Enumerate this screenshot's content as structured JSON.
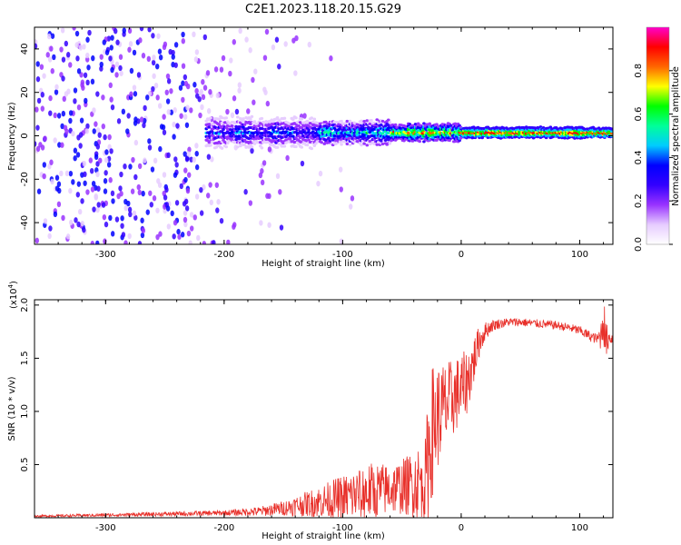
{
  "title": "C2E1.2023.118.20.15.G29",
  "colors": {
    "snr_line": "#e8302a",
    "axis": "#000000"
  },
  "chart_data": [
    {
      "type": "heatmap",
      "title": "C2E1.2023.118.20.15.G29",
      "xlabel": "Height of straight line (km)",
      "ylabel": "Frequency (Hz)",
      "xlim": [
        -360,
        128
      ],
      "ylim": [
        -50,
        50
      ],
      "x_ticks": [
        {
          "value": -300,
          "label": "-300"
        },
        {
          "value": -200,
          "label": "-200"
        },
        {
          "value": -100,
          "label": "-100"
        },
        {
          "value": 0,
          "label": "0"
        },
        {
          "value": 100,
          "label": "100"
        }
      ],
      "y_ticks": [
        {
          "value": -40,
          "label": "-40"
        },
        {
          "value": -20,
          "label": "-20"
        },
        {
          "value": 0,
          "label": "0"
        },
        {
          "value": 20,
          "label": "20"
        },
        {
          "value": 40,
          "label": "40"
        }
      ],
      "colorbar": {
        "label": "Normalized spectral amplitude",
        "range": [
          0,
          1
        ],
        "ticks": [
          {
            "value": 0.0,
            "label": "0.0"
          },
          {
            "value": 0.2,
            "label": "0.2"
          },
          {
            "value": 0.4,
            "label": "0.4"
          },
          {
            "value": 0.6,
            "label": "0.6"
          },
          {
            "value": 0.8,
            "label": "0.8"
          }
        ],
        "stops": [
          "#ffffff",
          "#e6ccff",
          "#9933ff",
          "#3300ff",
          "#0000ff",
          "#00ccff",
          "#00ff99",
          "#00ff00",
          "#ffff00",
          "#ff6600",
          "#ff0000",
          "#ff00cc"
        ]
      },
      "signal_frequency_hz": 1.5,
      "signal_start_height_km": -215
    },
    {
      "type": "line",
      "xlabel": "Height of straight line (km)",
      "ylabel": "SNR (10 * v/v)",
      "multiplier_label": "(x10",
      "multiplier_exponent": "4",
      "multiplier_close": ")",
      "xlim": [
        -360,
        128
      ],
      "ylim": [
        0,
        20500
      ],
      "x_ticks": [
        {
          "value": -300,
          "label": "-300"
        },
        {
          "value": -200,
          "label": "-200"
        },
        {
          "value": -100,
          "label": "-100"
        },
        {
          "value": 0,
          "label": "0"
        },
        {
          "value": 100,
          "label": "100"
        }
      ],
      "y_ticks": [
        {
          "value": 5000,
          "label": "0.5"
        },
        {
          "value": 10000,
          "label": "1.0"
        },
        {
          "value": 15000,
          "label": "1.5"
        },
        {
          "value": 20000,
          "label": "2.0"
        }
      ],
      "series": [
        {
          "x": [
            -360,
            -300,
            -250,
            -200,
            -170,
            -150,
            -130,
            -110,
            -90,
            -80,
            -70,
            -60,
            -50,
            -40,
            -35,
            -30,
            -28,
            -25,
            -20,
            -15,
            -10,
            -5,
            0,
            5,
            10,
            15,
            20,
            25,
            30,
            40,
            50,
            60,
            70,
            80,
            90,
            100,
            110,
            115,
            118,
            120,
            122,
            125,
            128
          ],
          "y": [
            150,
            250,
            350,
            450,
            600,
            900,
            1300,
            1700,
            2100,
            2400,
            2600,
            2700,
            2900,
            3200,
            3400,
            3600,
            5500,
            8000,
            9500,
            10200,
            10800,
            11500,
            12000,
            12800,
            14500,
            16500,
            17500,
            18000,
            18200,
            18400,
            18400,
            18300,
            18200,
            18100,
            17900,
            17600,
            17000,
            16800,
            17200,
            19000,
            16500,
            17000,
            16800
          ],
          "noise": [
            100,
            150,
            200,
            250,
            450,
            700,
            1200,
            1800,
            2500,
            2800,
            2600,
            2400,
            2600,
            3200,
            3600,
            4000,
            6500,
            6500,
            5000,
            4500,
            4000,
            3500,
            3500,
            3000,
            2500,
            1500,
            900,
            600,
            500,
            400,
            400,
            400,
            400,
            400,
            400,
            450,
            500,
            500,
            1500,
            2500,
            2000,
            600,
            600
          ]
        }
      ]
    }
  ]
}
